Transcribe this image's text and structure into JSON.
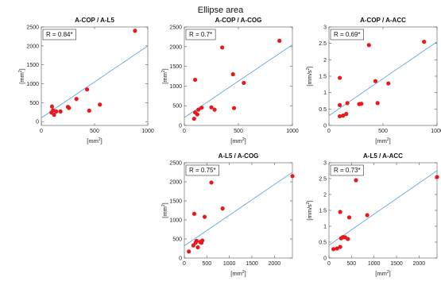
{
  "figure": {
    "title": "Ellipse area"
  },
  "chart_data": [
    {
      "type": "scatter",
      "title": "A-COP / A-L5",
      "r_label": "R = 0.84*",
      "xlabel": "[mm",
      "ylabel": "[mm",
      "xlabel_sup": "2",
      "ylabel_sup": "2",
      "xlabel_end": "]",
      "ylabel_end": "]",
      "xlim": [
        0,
        1000
      ],
      "ylim": [
        -100,
        2500
      ],
      "xticks": [
        0,
        500,
        1000
      ],
      "yticks": [
        0,
        500,
        1000,
        1500,
        2000,
        2500
      ],
      "fit": {
        "x": [
          0,
          1000
        ],
        "y": [
          100,
          2000
        ]
      },
      "points": [
        [
          880,
          2400
        ],
        [
          100,
          400
        ],
        [
          95,
          240
        ],
        [
          120,
          180
        ],
        [
          110,
          300
        ],
        [
          140,
          270
        ],
        [
          180,
          270
        ],
        [
          250,
          390
        ],
        [
          330,
          600
        ],
        [
          260,
          360
        ],
        [
          430,
          850
        ],
        [
          550,
          450
        ],
        [
          450,
          290
        ]
      ],
      "colors": {
        "point": "#e8181c",
        "line": "#5fa8dc"
      }
    },
    {
      "type": "scatter",
      "title": "A-COP / A-COG",
      "r_label": "R = 0.7*",
      "xlabel": "[mm",
      "ylabel": "[mm",
      "xlabel_sup": "2",
      "ylabel_sup": "2",
      "xlabel_end": "]",
      "ylabel_end": "]",
      "xlim": [
        0,
        1000
      ],
      "ylim": [
        0,
        2500
      ],
      "xticks": [
        0,
        500,
        1000
      ],
      "yticks": [
        0,
        500,
        1000,
        1500,
        2000,
        2500
      ],
      "fit": {
        "x": [
          0,
          1000
        ],
        "y": [
          200,
          2050
        ]
      },
      "points": [
        [
          880,
          2150
        ],
        [
          350,
          1980
        ],
        [
          100,
          1160
        ],
        [
          450,
          1300
        ],
        [
          550,
          1080
        ],
        [
          100,
          330
        ],
        [
          130,
          400
        ],
        [
          90,
          170
        ],
        [
          120,
          280
        ],
        [
          160,
          450
        ],
        [
          250,
          460
        ],
        [
          280,
          400
        ],
        [
          460,
          440
        ]
      ],
      "colors": {
        "point": "#e8181c",
        "line": "#5fa8dc"
      }
    },
    {
      "type": "scatter",
      "title": "A-COP / A-ACC",
      "r_label": "R = 0.69*",
      "xlabel": "[mm",
      "ylabel": "[mm/s",
      "xlabel_sup": "2",
      "ylabel_sup": "2",
      "xlabel_end": "]",
      "ylabel_end": "]",
      "xlim": [
        0,
        1000
      ],
      "ylim": [
        0,
        3
      ],
      "xticks": [
        0,
        500,
        1000
      ],
      "yticks": [
        0,
        0.5,
        1,
        1.5,
        2,
        2.5,
        3
      ],
      "fit": {
        "x": [
          0,
          1000
        ],
        "y": [
          0.3,
          2.55
        ]
      },
      "points": [
        [
          880,
          2.55
        ],
        [
          370,
          2.45
        ],
        [
          100,
          1.45
        ],
        [
          430,
          1.35
        ],
        [
          550,
          1.28
        ],
        [
          100,
          0.62
        ],
        [
          170,
          0.68
        ],
        [
          130,
          0.3
        ],
        [
          100,
          0.28
        ],
        [
          160,
          0.35
        ],
        [
          280,
          0.65
        ],
        [
          300,
          0.66
        ],
        [
          450,
          0.68
        ]
      ],
      "colors": {
        "point": "#e8181c",
        "line": "#5fa8dc"
      }
    },
    {
      "type": "scatter",
      "title": "A-L5 / A-COG",
      "r_label": "R = 0.75*",
      "xlabel": "[mm",
      "ylabel": "[mm",
      "xlabel_sup": "2",
      "ylabel_sup": "2",
      "xlabel_end": "]",
      "ylabel_end": "]",
      "xlim": [
        0,
        2400
      ],
      "ylim": [
        0,
        2500
      ],
      "xticks": [
        0,
        500,
        1000,
        1500,
        2000
      ],
      "yticks": [
        0,
        500,
        1000,
        1500,
        2000,
        2500
      ],
      "fit": {
        "x": [
          0,
          2400
        ],
        "y": [
          320,
          2250
        ]
      },
      "points": [
        [
          2400,
          2150
        ],
        [
          600,
          1980
        ],
        [
          220,
          1160
        ],
        [
          850,
          1300
        ],
        [
          450,
          1080
        ],
        [
          100,
          170
        ],
        [
          200,
          330
        ],
        [
          250,
          400
        ],
        [
          300,
          280
        ],
        [
          350,
          420
        ],
        [
          400,
          460
        ],
        [
          270,
          450
        ],
        [
          380,
          400
        ]
      ],
      "colors": {
        "point": "#e8181c",
        "line": "#5fa8dc"
      }
    },
    {
      "type": "scatter",
      "title": "A-L5 / A-ACC",
      "r_label": "R = 0.73*",
      "xlabel": "[mm",
      "ylabel": "[mm/s",
      "xlabel_sup": "2",
      "ylabel_sup": "2",
      "xlabel_end": "]",
      "ylabel_end": "]",
      "xlim": [
        0,
        2400
      ],
      "ylim": [
        0,
        3
      ],
      "xticks": [
        0,
        500,
        1000,
        1500,
        2000
      ],
      "yticks": [
        0,
        0.5,
        1,
        1.5,
        2,
        2.5,
        3
      ],
      "fit": {
        "x": [
          0,
          2400
        ],
        "y": [
          0.4,
          2.75
        ]
      },
      "points": [
        [
          2400,
          2.55
        ],
        [
          600,
          2.45
        ],
        [
          250,
          1.45
        ],
        [
          850,
          1.35
        ],
        [
          450,
          1.28
        ],
        [
          100,
          0.28
        ],
        [
          180,
          0.3
        ],
        [
          250,
          0.35
        ],
        [
          270,
          0.62
        ],
        [
          320,
          0.66
        ],
        [
          360,
          0.65
        ],
        [
          420,
          0.6
        ],
        [
          300,
          0.65
        ]
      ],
      "colors": {
        "point": "#e8181c",
        "line": "#5fa8dc"
      }
    }
  ]
}
